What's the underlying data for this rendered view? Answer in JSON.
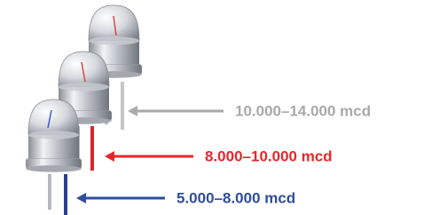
{
  "labels": [
    "10.000–14.000 mcd",
    "8.000–10.000 mcd",
    "5.000–8.000 mcd"
  ]
}
